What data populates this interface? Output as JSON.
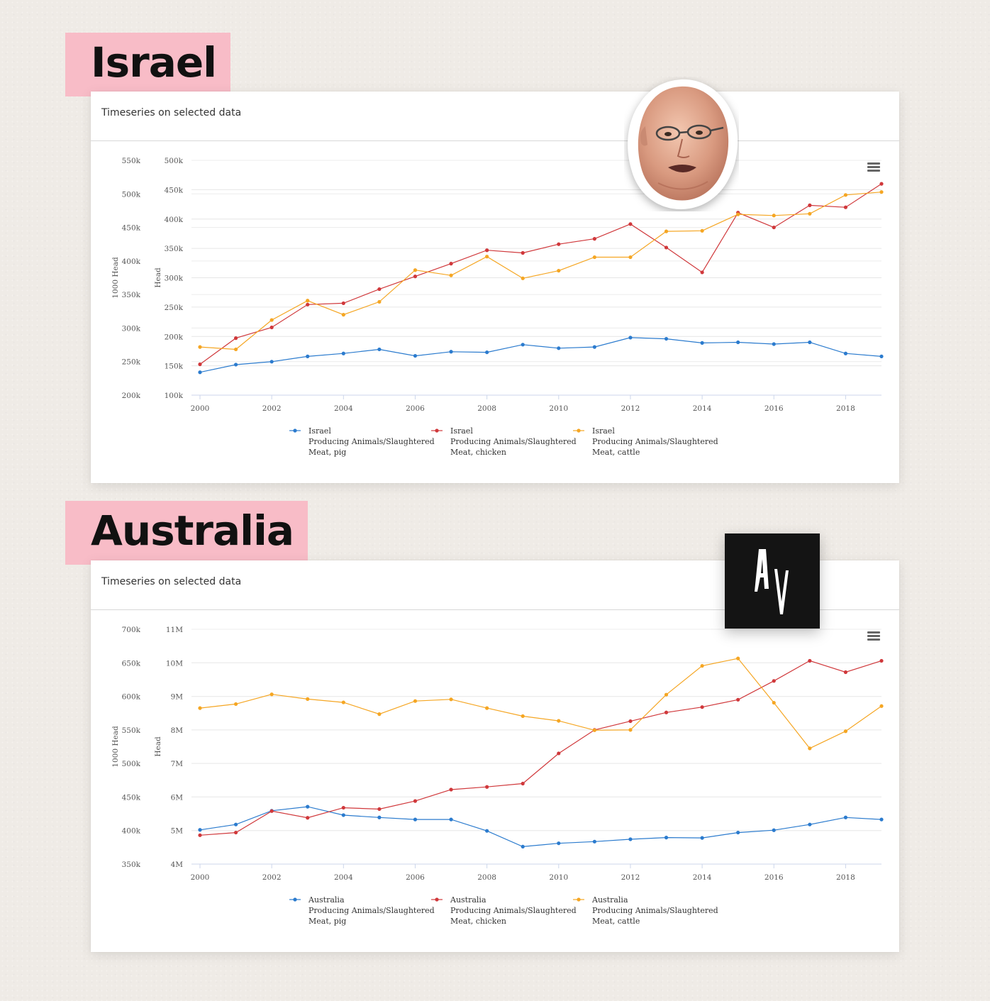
{
  "panels": [
    {
      "country_label": "Israel",
      "card_title": "Timeseries on selected data",
      "chart_data": {
        "type": "line",
        "x": [
          2000,
          2001,
          2002,
          2003,
          2004,
          2005,
          2006,
          2007,
          2008,
          2009,
          2010,
          2011,
          2012,
          2013,
          2014,
          2015,
          2016,
          2017,
          2018,
          2019
        ],
        "x_ticks": [
          "2000",
          "2002",
          "2004",
          "2006",
          "2008",
          "2010",
          "2012",
          "2014",
          "2016",
          "2018"
        ],
        "x_range": [
          2000,
          2019
        ],
        "y_left_label": "1000 Head",
        "y_left_ticks": [
          "550k",
          "500k",
          "450k",
          "400k",
          "350k",
          "300k",
          "250k",
          "200k"
        ],
        "y_left_range": [
          200,
          550
        ],
        "y_right_label": "Head",
        "y_right_ticks": [
          "500k",
          "450k",
          "400k",
          "350k",
          "300k",
          "250k",
          "200k",
          "150k",
          "100k"
        ],
        "y_right_range": [
          100000,
          500000
        ],
        "grid": true,
        "legend_position": "bottom",
        "series": [
          {
            "name_line1": "Israel",
            "name_line2": "Producing Animals/Slaughtered",
            "name_line3": "Meat, pig",
            "axis": "right",
            "color": "#2b7bce",
            "values": [
              139000,
              152000,
              157000,
              166000,
              171000,
              178000,
              167000,
              174000,
              173000,
              186000,
              180000,
              182000,
              198000,
              196000,
              189000,
              190000,
              187000,
              190000,
              171000,
              166000
            ]
          },
          {
            "name_line1": "Israel",
            "name_line2": "Producing Animals/Slaughtered",
            "name_line3": "Meat, chicken",
            "axis": "left",
            "color": "#d0383b",
            "values": [
              246,
              285,
              301,
              335,
              337,
              358,
              377,
              396,
              416,
              412,
              425,
              433,
              455,
              420,
              383,
              472,
              450,
              483,
              480,
              515
            ]
          },
          {
            "name_line1": "Israel",
            "name_line2": "Producing Animals/Slaughtered",
            "name_line3": "Meat, cattle",
            "axis": "right",
            "color": "#f5a623",
            "values": [
              182000,
              178000,
              228000,
              261000,
              237000,
              259000,
              313000,
              304000,
              336000,
              299000,
              312000,
              335000,
              335000,
              379000,
              380000,
              408000,
              406000,
              409000,
              441000,
              446000
            ]
          }
        ]
      }
    },
    {
      "country_label": "Australia",
      "card_title": "Timeseries on selected data",
      "chart_data": {
        "type": "line",
        "x": [
          2000,
          2001,
          2002,
          2003,
          2004,
          2005,
          2006,
          2007,
          2008,
          2009,
          2010,
          2011,
          2012,
          2013,
          2014,
          2015,
          2016,
          2017,
          2018,
          2019
        ],
        "x_ticks": [
          "2000",
          "2002",
          "2004",
          "2006",
          "2008",
          "2010",
          "2012",
          "2014",
          "2016",
          "2018"
        ],
        "x_range": [
          2000,
          2019
        ],
        "y_left_label": "1000 Head",
        "y_left_ticks": [
          "700k",
          "650k",
          "600k",
          "550k",
          "500k",
          "450k",
          "400k",
          "350k"
        ],
        "y_left_range": [
          350,
          700
        ],
        "y_right_label": "Head",
        "y_right_ticks": [
          "11M",
          "10M",
          "9M",
          "8M",
          "7M",
          "6M",
          "5M",
          "4M"
        ],
        "y_right_range": [
          4000000,
          11000000
        ],
        "grid": true,
        "legend_position": "bottom",
        "series": [
          {
            "name_line1": "Australia",
            "name_line2": "Producing Animals/Slaughtered",
            "name_line3": "Meat, pig",
            "axis": "right",
            "color": "#2b7bce",
            "values": [
              5020000,
              5180000,
              5590000,
              5710000,
              5460000,
              5390000,
              5330000,
              5330000,
              4990000,
              4520000,
              4620000,
              4670000,
              4740000,
              4790000,
              4780000,
              4940000,
              5010000,
              5180000,
              5390000,
              5330000
            ]
          },
          {
            "name_line1": "Australia",
            "name_line2": "Producing Animals/Slaughtered",
            "name_line3": "Meat, chicken",
            "axis": "left",
            "color": "#d0383b",
            "values": [
              393,
              397,
              429,
              419,
              434,
              432,
              444,
              461,
              465,
              470,
              515,
              550,
              563,
              576,
              584,
              595,
              623,
              653,
              636,
              653
            ]
          },
          {
            "name_line1": "Australia",
            "name_line2": "Producing Animals/Slaughtered",
            "name_line3": "Meat, cattle",
            "axis": "right",
            "color": "#f5a623",
            "values": [
              8650000,
              8770000,
              9060000,
              8920000,
              8820000,
              8470000,
              8860000,
              8910000,
              8650000,
              8410000,
              8270000,
              7990000,
              8000000,
              9050000,
              9910000,
              10130000,
              8810000,
              7450000,
              7960000,
              8710000
            ]
          }
        ]
      }
    }
  ]
}
